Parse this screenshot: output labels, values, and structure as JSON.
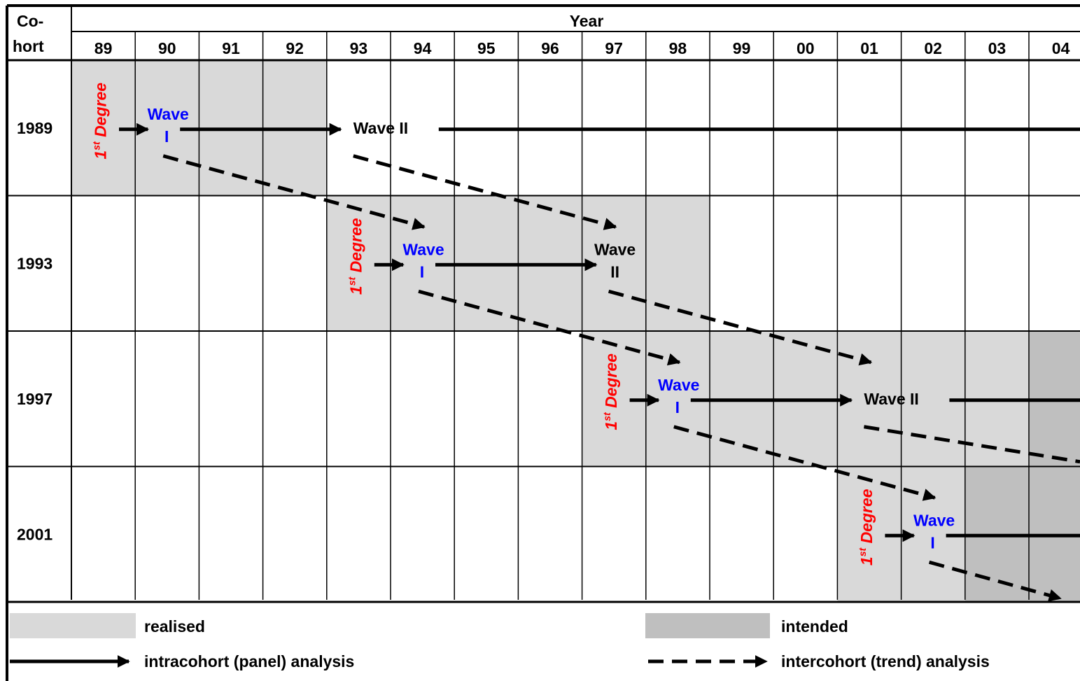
{
  "header": {
    "cohort_label_line1": "Co-",
    "cohort_label_line2": "hort",
    "year_label": "Year"
  },
  "years": [
    "89",
    "90",
    "91",
    "92",
    "93",
    "94",
    "95",
    "96",
    "97",
    "98",
    "99",
    "00",
    "01",
    "02",
    "03",
    "04"
  ],
  "cohorts": [
    {
      "label": "1989",
      "realised_span": [
        "89",
        "92"
      ],
      "intended_span": null,
      "degree": {
        "base": "1",
        "sup": "st",
        "word": " Degree"
      },
      "wave1": {
        "line1": "Wave",
        "line2": "I"
      },
      "wave2": {
        "line1": "Wave II",
        "line2": ""
      }
    },
    {
      "label": "1993",
      "realised_span": [
        "93",
        "98"
      ],
      "intended_span": null,
      "degree": {
        "base": "1",
        "sup": "st",
        "word": " Degree"
      },
      "wave1": {
        "line1": "Wave",
        "line2": "I"
      },
      "wave2": {
        "line1": "Wave",
        "line2": "II"
      }
    },
    {
      "label": "1997",
      "realised_span": [
        "97",
        "03"
      ],
      "intended_span": [
        "04",
        "04"
      ],
      "degree": {
        "base": "1",
        "sup": "st",
        "word": " Degree"
      },
      "wave1": {
        "line1": "Wave",
        "line2": "I"
      },
      "wave2": {
        "line1": "Wave II",
        "line2": ""
      }
    },
    {
      "label": "2001",
      "realised_span": [
        "01",
        "02"
      ],
      "intended_span": [
        "03",
        "04"
      ],
      "degree": {
        "base": "1",
        "sup": "st",
        "word": " Degree"
      },
      "wave1": {
        "line1": "Wave",
        "line2": "I"
      },
      "wave2": null
    }
  ],
  "legend": {
    "realised": "realised",
    "intended": "intended",
    "intracohort": "intracohort (panel) analysis",
    "intercohort": "intercohort (trend) analysis"
  },
  "colors": {
    "realised": "#d9d9d9",
    "intended": "#bfbfbf",
    "degree_text": "#ff0000",
    "wave1_text": "#0000ff",
    "text": "#000000",
    "grid": "#000000"
  }
}
